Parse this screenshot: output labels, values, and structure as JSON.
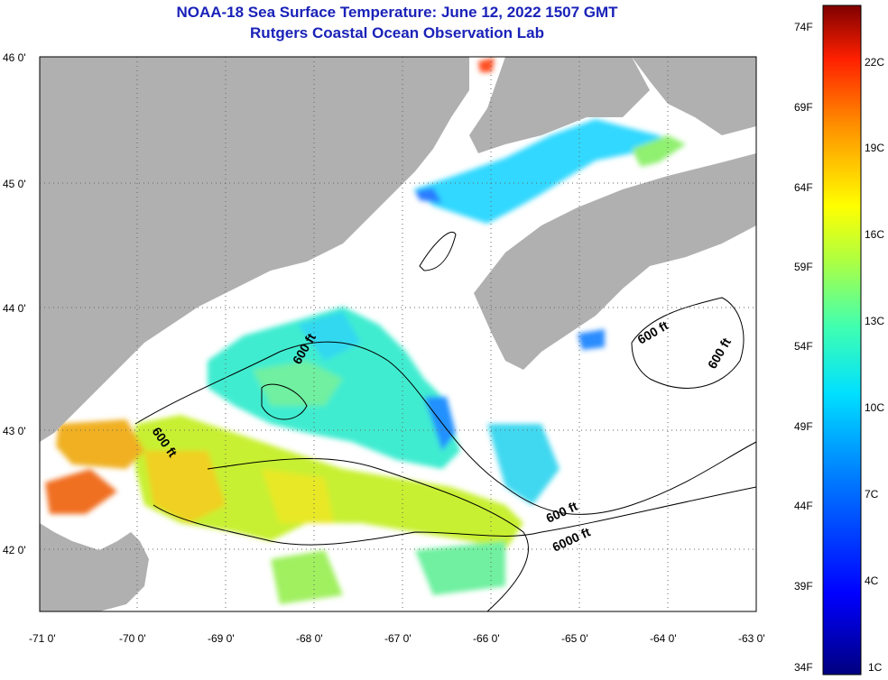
{
  "title": "NOAA-18 Sea Surface Temperature:  June 12, 2022 1507 GMT",
  "subtitle": "Rutgers Coastal Ocean Observation Lab",
  "axes": {
    "lon_labels": [
      "-71 0'",
      "-70 0'",
      "-69 0'",
      "-68 0'",
      "-67 0'",
      "-66 0'",
      "-65 0'",
      "-64 0'",
      "-63 0'"
    ],
    "lat_labels": [
      "46 0'",
      "45 0'",
      "44 0'",
      "43 0'",
      "42 0'"
    ]
  },
  "colorbar": {
    "fahrenheit": [
      "74F",
      "69F",
      "64F",
      "59F",
      "54F",
      "49F",
      "44F",
      "39F",
      "34F"
    ],
    "celsius": [
      "22C",
      "19C",
      "16C",
      "13C",
      "10C",
      "7C",
      "4C",
      "1C"
    ]
  },
  "contours": {
    "labels": [
      "600 ft",
      "600 ft",
      "600 ft",
      "600 ft",
      "600 ft",
      "6000 ft"
    ]
  },
  "colors": {
    "land": "#b0b0b0",
    "no_data": "#ffffff",
    "title": "#1a22b8"
  }
}
